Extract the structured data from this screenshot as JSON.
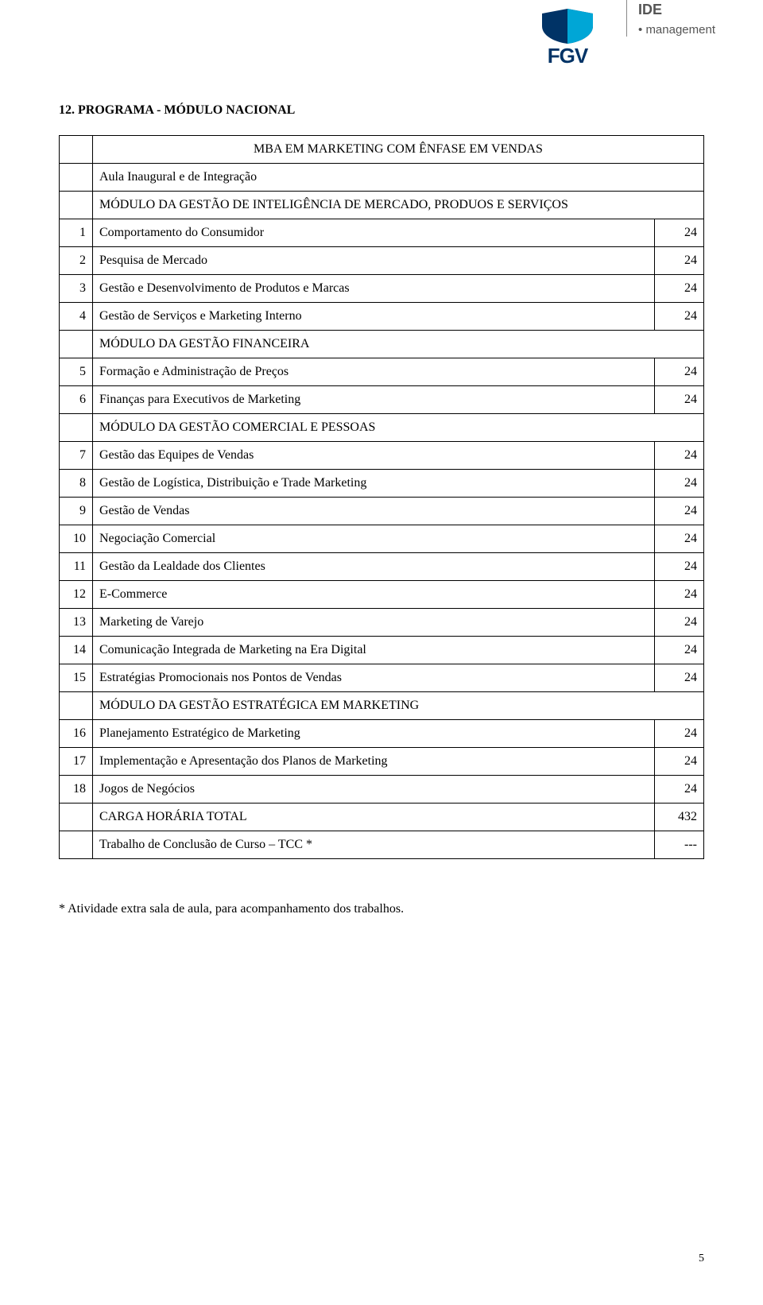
{
  "logo": {
    "fgv_text": "FGV",
    "ide_title": "IDE",
    "ide_sub": "management",
    "brand_color": "#003366",
    "accent_color": "#00a6d6"
  },
  "heading": "12. PROGRAMA - MÓDULO NACIONAL",
  "table": {
    "rows": [
      {
        "type": "title",
        "desc": "MBA EM MARKETING COM ÊNFASE EM VENDAS"
      },
      {
        "type": "plain",
        "desc": "Aula Inaugural e de Integração"
      },
      {
        "type": "module",
        "desc": "MÓDULO DA GESTÃO DE INTELIGÊNCIA DE MERCADO, PRODUOS E SERVIÇOS"
      },
      {
        "type": "item",
        "num": "1",
        "desc": "Comportamento do Consumidor",
        "hrs": "24"
      },
      {
        "type": "item",
        "num": "2",
        "desc": "Pesquisa de Mercado",
        "hrs": "24"
      },
      {
        "type": "item",
        "num": "3",
        "desc": "Gestão e Desenvolvimento de Produtos e Marcas",
        "hrs": "24"
      },
      {
        "type": "item",
        "num": "4",
        "desc": "Gestão de Serviços e Marketing Interno",
        "hrs": "24"
      },
      {
        "type": "module",
        "desc": "MÓDULO DA GESTÃO FINANCEIRA"
      },
      {
        "type": "item",
        "num": "5",
        "desc": "Formação e Administração de Preços",
        "hrs": "24"
      },
      {
        "type": "item",
        "num": "6",
        "desc": "Finanças para Executivos de Marketing",
        "hrs": "24"
      },
      {
        "type": "module",
        "desc": "MÓDULO DA GESTÃO COMERCIAL E PESSOAS"
      },
      {
        "type": "item",
        "num": "7",
        "desc": "Gestão das Equipes de Vendas",
        "hrs": "24"
      },
      {
        "type": "item",
        "num": "8",
        "desc": "Gestão de Logística, Distribuição e Trade Marketing",
        "hrs": "24"
      },
      {
        "type": "item",
        "num": "9",
        "desc": "Gestão de Vendas",
        "hrs": "24"
      },
      {
        "type": "item",
        "num": "10",
        "desc": "Negociação Comercial",
        "hrs": "24"
      },
      {
        "type": "item",
        "num": "11",
        "desc": "Gestão da Lealdade dos Clientes",
        "hrs": "24"
      },
      {
        "type": "item",
        "num": "12",
        "desc": "E-Commerce",
        "hrs": "24"
      },
      {
        "type": "item",
        "num": "13",
        "desc": "Marketing de Varejo",
        "hrs": "24"
      },
      {
        "type": "item",
        "num": "14",
        "desc": "Comunicação Integrada de Marketing na Era Digital",
        "hrs": "24"
      },
      {
        "type": "item",
        "num": "15",
        "desc": "Estratégias Promocionais nos Pontos de Vendas",
        "hrs": "24"
      },
      {
        "type": "module",
        "desc": "MÓDULO DA GESTÃO ESTRATÉGICA EM MARKETING"
      },
      {
        "type": "item",
        "num": "16",
        "desc": "Planejamento Estratégico de Marketing",
        "hrs": "24"
      },
      {
        "type": "item",
        "num": "17",
        "desc": "Implementação e Apresentação dos Planos de Marketing",
        "hrs": "24"
      },
      {
        "type": "item",
        "num": "18",
        "desc": "Jogos de Negócios",
        "hrs": "24"
      },
      {
        "type": "total",
        "desc": "CARGA HORÁRIA TOTAL",
        "hrs": "432"
      },
      {
        "type": "tcc",
        "desc": "Trabalho de Conclusão de Curso – TCC *",
        "hrs": "---"
      }
    ]
  },
  "footnote": "* Atividade extra sala de aula, para acompanhamento dos trabalhos.",
  "page_number": "5"
}
